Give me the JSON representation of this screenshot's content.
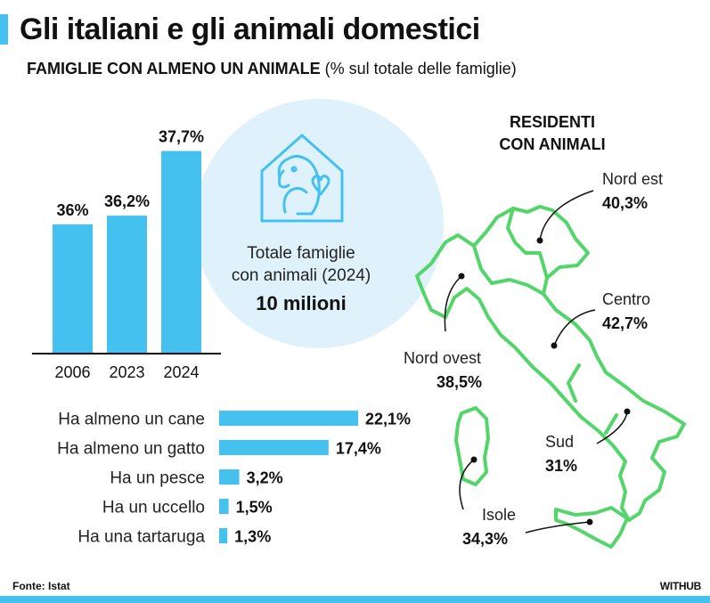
{
  "header": {
    "title": "Gli italiani e gli animali domestici",
    "subtitle_strong": "FAMIGLIE CON ALMENO UN ANIMALE",
    "subtitle_rest": "(% sul totale delle famiglie)"
  },
  "colors": {
    "accent": "#45c1f0",
    "circle": "#dff2fb",
    "map_line": "#52d66a",
    "text": "#111111"
  },
  "summary": {
    "label_line1": "Totale famiglie",
    "label_line2": "con animali (2024)",
    "value": "10 milioni",
    "icon": "house-pets-icon"
  },
  "chart_data": [
    {
      "type": "bar",
      "title": "FAMIGLIE CON ALMENO UN ANIMALE",
      "ylabel": "% sul totale delle famiglie",
      "categories": [
        "2006",
        "2023",
        "2024"
      ],
      "values": [
        36,
        36.2,
        37.7
      ],
      "value_labels": [
        "36%",
        "36,2%",
        "37,7%"
      ],
      "ylim": [
        33,
        38
      ]
    },
    {
      "type": "bar",
      "orientation": "horizontal",
      "categories": [
        "Ha almeno un cane",
        "Ha almeno un gatto",
        "Ha un pesce",
        "Ha un uccello",
        "Ha una tartaruga"
      ],
      "values": [
        22.1,
        17.4,
        3.2,
        1.5,
        1.3
      ],
      "value_labels": [
        "22,1%",
        "17,4%",
        "3,2%",
        "1,5%",
        "1,3%"
      ],
      "xlim": [
        0,
        22.1
      ]
    }
  ],
  "map": {
    "title_line1": "RESIDENTI",
    "title_line2": "CON ANIMALI",
    "regions": [
      {
        "name": "Nord est",
        "value": "40,3%"
      },
      {
        "name": "Centro",
        "value": "42,7%"
      },
      {
        "name": "Nord ovest",
        "value": "38,5%"
      },
      {
        "name": "Sud",
        "value": "31%"
      },
      {
        "name": "Isole",
        "value": "34,3%"
      }
    ]
  },
  "footer": {
    "source": "Fonte: Istat",
    "brand": "WITHUB"
  }
}
